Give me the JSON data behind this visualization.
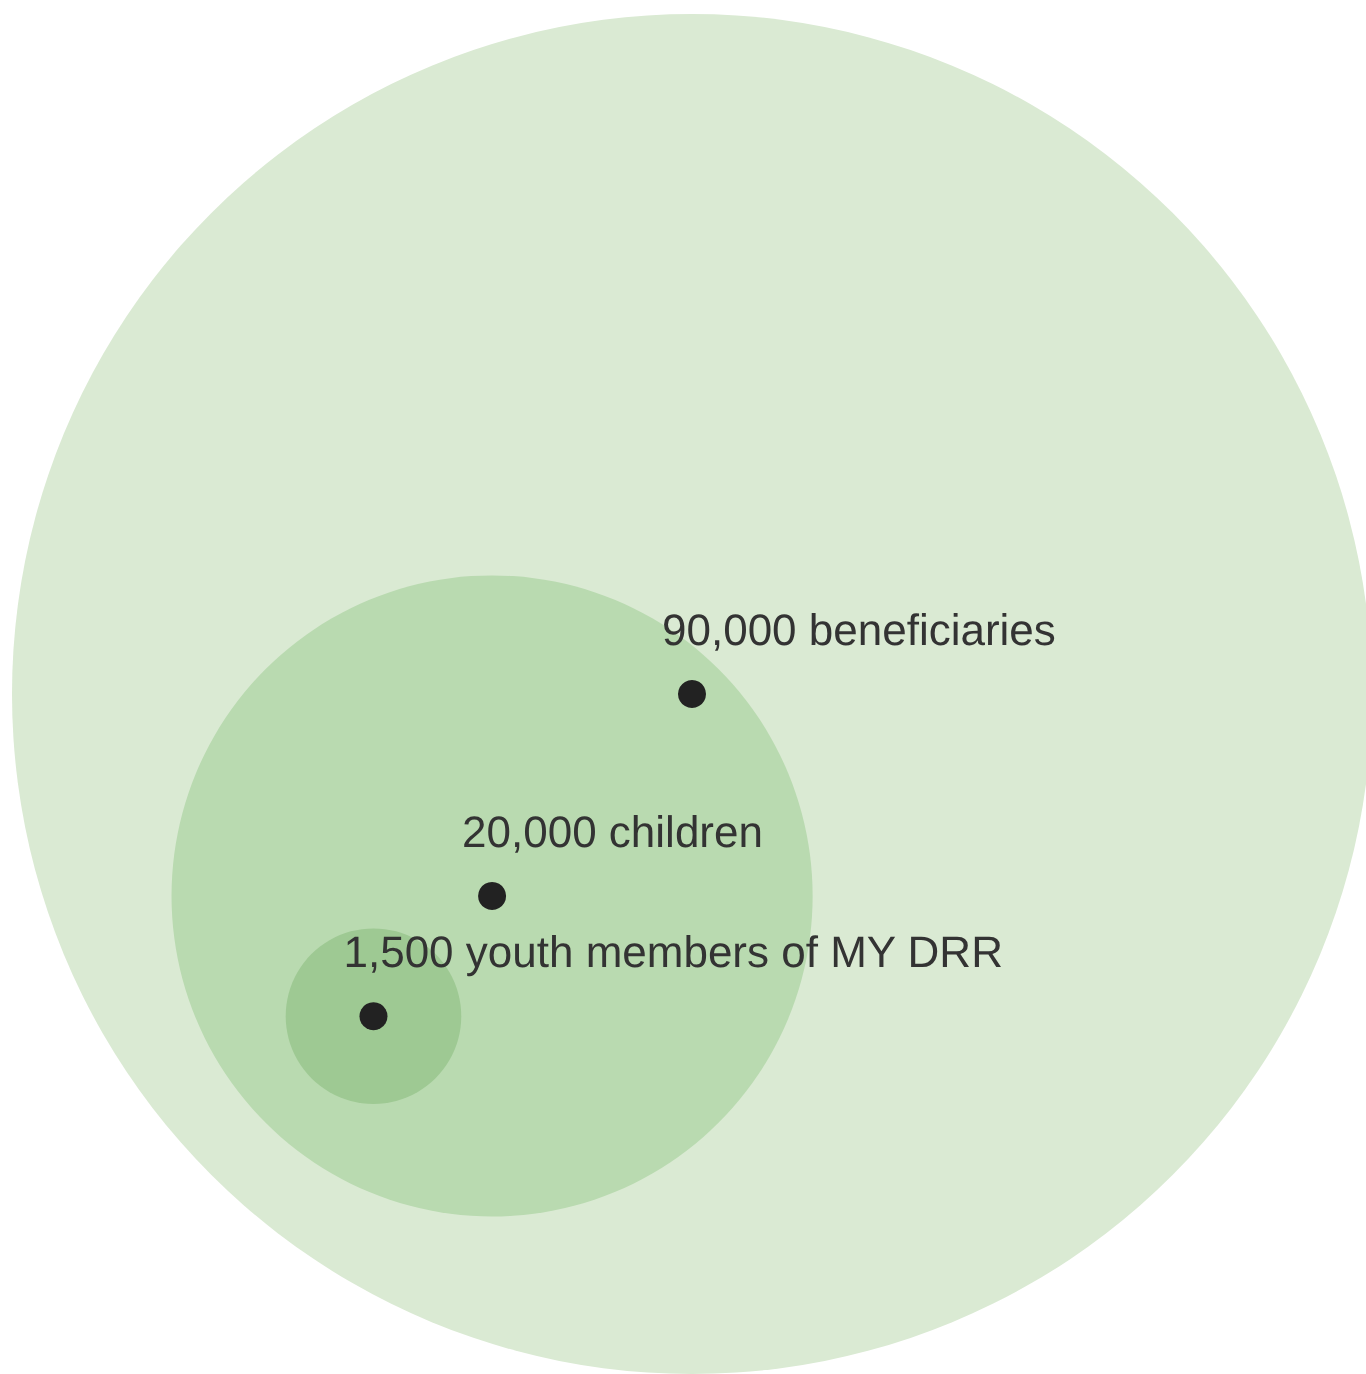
{
  "chart_data": {
    "type": "other",
    "categories": [
      "beneficiaries",
      "children",
      "youth members of MY DRR"
    ],
    "values": [
      90000,
      20000,
      1500
    ],
    "value_labels": [
      "90,000",
      "20,000",
      "1,500"
    ],
    "colors": [
      "#daead3",
      "#b9dab0",
      "#9ec993"
    ]
  }
}
